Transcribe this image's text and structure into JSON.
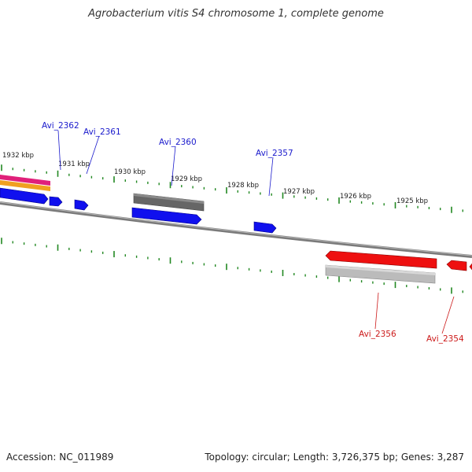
{
  "title": "Agrobacterium vitis S4 chromosome 1, complete genome",
  "footer": {
    "accession": "Accession: NC_011989",
    "summary": "Topology: circular; Length: 3,726,375 bp; Genes: 3,287"
  },
  "kbp_labels": [
    "1932 kbp",
    "1931 kbp",
    "1930 kbp",
    "1929 kbp",
    "1928 kbp",
    "1927 kbp",
    "1926 kbp",
    "1925 kbp"
  ],
  "gene_labels": {
    "forward": [
      "Avi_2362",
      "Avi_2361",
      "Avi_2360",
      "Avi_2357"
    ],
    "reverse": [
      "Avi_2356",
      "Avi_2354"
    ]
  },
  "colors": {
    "forward_gene": "#1010ee",
    "reverse_gene": "#ee1010",
    "grey_feature": "#666666",
    "light_grey_feature": "#bbbbbb",
    "backbone": "#888888",
    "tick": "#228822",
    "pink_band": "#e0207a",
    "orange_band": "#f0a020"
  }
}
